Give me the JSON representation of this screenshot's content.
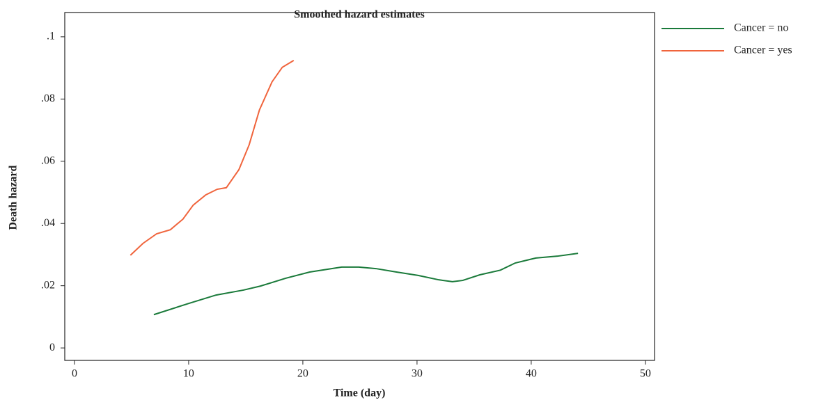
{
  "chart_data": {
    "type": "line",
    "title": "Smoothed hazard estimates",
    "x_label": "Time (day)",
    "y_label": "Death hazard",
    "xlim": [
      -0.85,
      50.8
    ],
    "xticks": [
      0,
      10,
      20,
      30,
      40,
      50
    ],
    "ylim": [
      -0.004,
      0.1078
    ],
    "yticks": [
      0,
      {
        "value": 0.02,
        "label": ".02"
      },
      {
        "value": 0.04,
        "label": ".04"
      },
      {
        "value": 0.06,
        "label": ".06"
      },
      {
        "value": 0.08,
        "label": ".08"
      },
      {
        "value": 0.1,
        "label": ".1"
      }
    ],
    "series": [
      {
        "name": "Cancer = no",
        "color": "#1a7a3a",
        "x": [
          6.95,
          10,
          12.4,
          14.8,
          16.3,
          18.5,
          20.6,
          23.4,
          24.9,
          26.4,
          28.2,
          30.1,
          31.9,
          33.1,
          34,
          35.5,
          37.3,
          38.6,
          40.4,
          42.3,
          44.1
        ],
        "values": [
          0.0107,
          0.0143,
          0.017,
          0.0186,
          0.0199,
          0.0224,
          0.0244,
          0.026,
          0.026,
          0.0255,
          0.0244,
          0.0233,
          0.0219,
          0.0213,
          0.0217,
          0.0235,
          0.025,
          0.0273,
          0.0289,
          0.0295,
          0.0304
        ]
      },
      {
        "name": "Cancer = yes",
        "color": "#f0643c",
        "x": [
          4.9,
          6,
          7.2,
          8.4,
          9.5,
          10.4,
          11.5,
          12.5,
          13.3,
          14.4,
          15.3,
          16.2,
          17.3,
          18.2,
          19.2
        ],
        "values": [
          0.0298,
          0.0336,
          0.0367,
          0.038,
          0.0414,
          0.0459,
          0.0492,
          0.051,
          0.0515,
          0.0573,
          0.0653,
          0.0765,
          0.0855,
          0.0902,
          0.0924
        ]
      }
    ]
  }
}
